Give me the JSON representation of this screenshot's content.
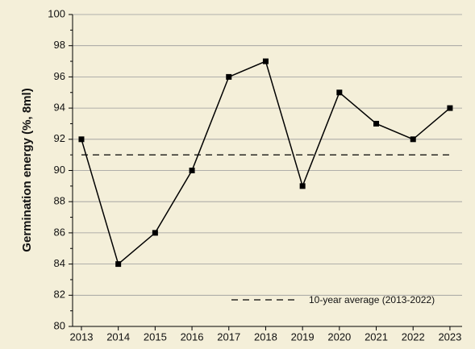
{
  "chart_data": {
    "type": "line",
    "y_label": "Germination energy (%, 8ml)",
    "x": [
      2013,
      2014,
      2015,
      2016,
      2017,
      2018,
      2019,
      2020,
      2021,
      2022,
      2023
    ],
    "series": [
      {
        "name": "Germination energy",
        "color": "#000000",
        "values": [
          92,
          84,
          86,
          90,
          96,
          97,
          89,
          95,
          93,
          92,
          94
        ]
      }
    ],
    "reference_line": {
      "name": "10-year average (2013-2022)",
      "value": 91,
      "color": "#000000"
    },
    "xlim": [
      2012.76,
      2023.33
    ],
    "xticks": [
      2013,
      2014,
      2015,
      2016,
      2017,
      2018,
      2019,
      2020,
      2021,
      2022,
      2023
    ],
    "ylim": [
      80,
      100
    ],
    "yticks": [
      80,
      82,
      84,
      86,
      88,
      90,
      92,
      94,
      96,
      98,
      100
    ],
    "grid": true,
    "legend": "lower right"
  }
}
